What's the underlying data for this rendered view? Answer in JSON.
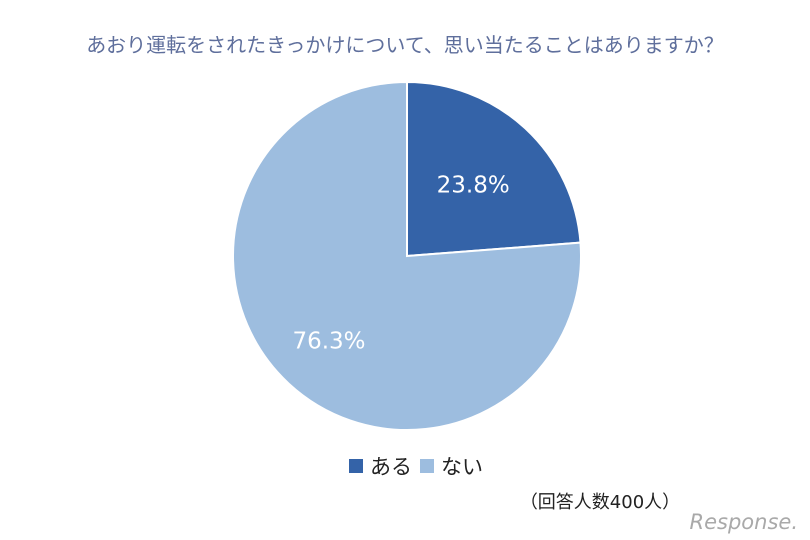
{
  "chart_data": {
    "type": "pie",
    "title": "あおり運転をされたきっかけについて、思い当たることはありますか？",
    "categories": [
      "ある",
      "ない"
    ],
    "values": [
      23.8,
      76.3
    ],
    "value_labels": [
      "23.8%",
      "76.3%"
    ],
    "colors": [
      "#3463a8",
      "#9dbddf"
    ],
    "legend_position": "bottom",
    "note": "（回答人数400人）"
  },
  "watermark": "Response."
}
